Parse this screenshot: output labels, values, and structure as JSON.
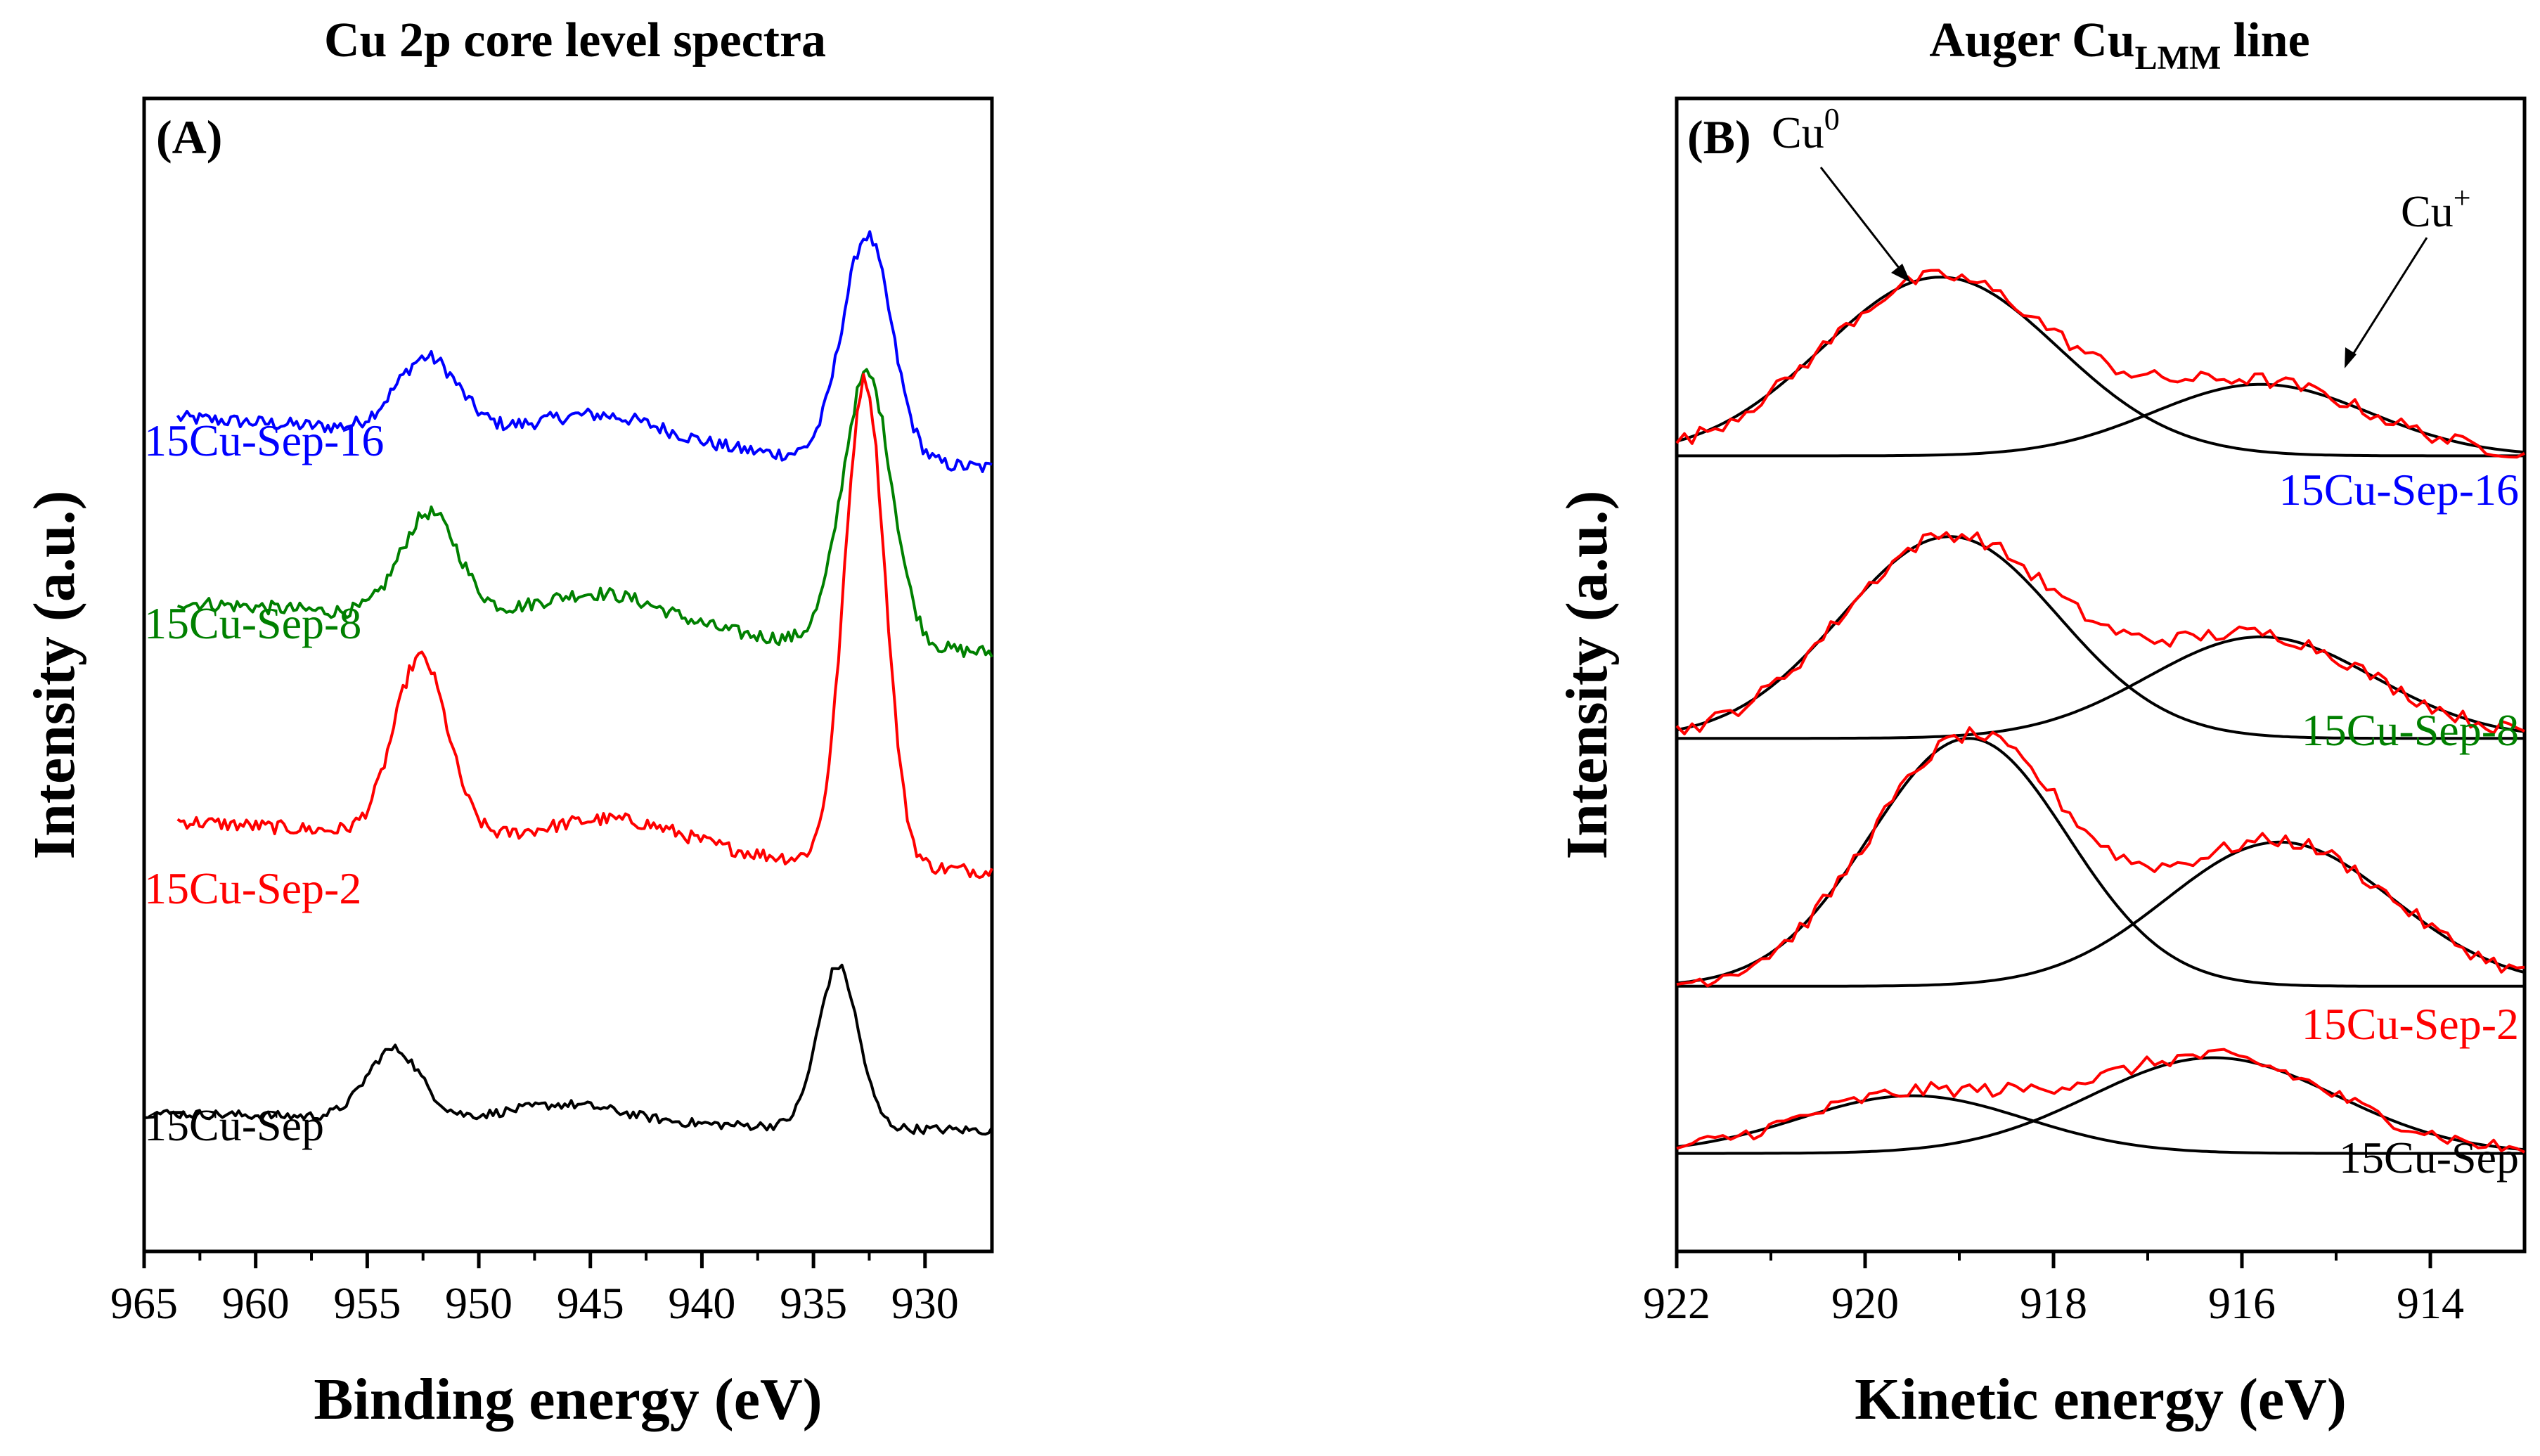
{
  "chart_data": [
    {
      "type": "line",
      "panel_label": "(A)",
      "title": "Cu 2p core level spectra",
      "xlabel": "Binding energy (eV)",
      "ylabel": "Intensity (a.u.)",
      "xlim": [
        965,
        927
      ],
      "x_reversed": true,
      "xticks": [
        965,
        960,
        955,
        950,
        945,
        940,
        935,
        930
      ],
      "ylim": [
        0,
        100
      ],
      "grid": false,
      "series": [
        {
          "name": "15Cu-Sep-16",
          "color": "#0000ff",
          "x_start": 963.5,
          "x_end": 927,
          "baseline": 69.5,
          "peaks": [
            [
              952.3,
              6.5,
              1.4
            ],
            [
              944.5,
              2.5,
              3.0
            ],
            [
              932.6,
              19.5,
              1.1
            ]
          ],
          "slope": 3.0,
          "noise": 0.6
        },
        {
          "name": "15Cu-Sep-8",
          "color": "#008000",
          "x_start": 963.5,
          "x_end": 927,
          "baseline": 53.5,
          "peaks": [
            [
              952.2,
              9.0,
              1.3
            ],
            [
              944.5,
              3.0,
              3.0
            ],
            [
              932.6,
              23.5,
              1.1
            ]
          ],
          "slope": 3.0,
          "noise": 0.6
        },
        {
          "name": "15Cu-Sep-2",
          "color": "#ff0000",
          "x_start": 963.5,
          "x_end": 927,
          "baseline": 34.5,
          "peaks": [
            [
              952.6,
              15.5,
              1.2
            ],
            [
              943.8,
              2.5,
              3.0
            ],
            [
              932.7,
              42.0,
              0.9
            ]
          ],
          "slope": 3.0,
          "noise": 0.6
        },
        {
          "name": "15Cu-Sep",
          "color": "#000000",
          "x_start": 965,
          "x_end": 927,
          "baseline": 11.0,
          "peaks": [
            [
              953.8,
              6.0,
              1.2
            ],
            [
              946.0,
              1.5,
              2.5
            ],
            [
              933.9,
              14.0,
              0.9
            ]
          ],
          "slope": 1.0,
          "noise": 0.4
        }
      ]
    },
    {
      "type": "line",
      "panel_label": "(B)",
      "title": "Auger Cu",
      "title_subscript": "LMM",
      "title_suffix": " line",
      "xlabel": "Kinetic energy (eV)",
      "ylabel": "Intensity (a.u.)",
      "xlim": [
        922,
        913
      ],
      "x_reversed": true,
      "xticks": [
        922,
        920,
        918,
        916,
        914
      ],
      "ylim": [
        0,
        100
      ],
      "grid": false,
      "annotations": [
        {
          "text": "Cu",
          "sup": "0"
        },
        {
          "text": "Cu",
          "sup": "+"
        }
      ],
      "groups": [
        {
          "name": "15Cu-Sep-16",
          "color": "#0000ff",
          "base": 69.0,
          "fit_components": [
            {
              "center": 919.2,
              "amplitude": 15.5,
              "sigma": 1.25
            },
            {
              "center": 915.8,
              "amplitude": 6.2,
              "sigma": 1.15
            }
          ]
        },
        {
          "name": "15Cu-Sep-8",
          "color": "#008000",
          "base": 44.5,
          "fit_components": [
            {
              "center": 919.1,
              "amplitude": 17.5,
              "sigma": 1.15
            },
            {
              "center": 915.8,
              "amplitude": 8.8,
              "sigma": 1.2
            }
          ]
        },
        {
          "name": "15Cu-Sep-2",
          "color": "#ff0000",
          "base": 23.0,
          "fit_components": [
            {
              "center": 918.9,
              "amplitude": 21.5,
              "sigma": 1.05
            },
            {
              "center": 915.6,
              "amplitude": 12.5,
              "sigma": 1.2
            }
          ]
        },
        {
          "name": "15Cu-Sep",
          "color": "#000000",
          "base": 8.5,
          "fit_components": [
            {
              "center": 919.5,
              "amplitude": 5.0,
              "sigma": 1.2
            },
            {
              "center": 916.3,
              "amplitude": 8.3,
              "sigma": 1.3
            }
          ]
        }
      ],
      "data_line_color": "#ff0000",
      "fit_line_color": "#000000"
    }
  ]
}
